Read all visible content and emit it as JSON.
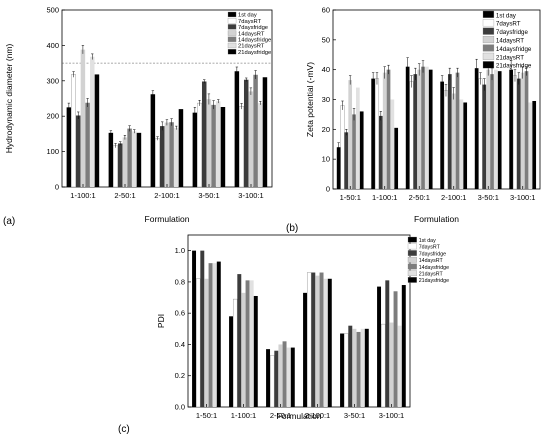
{
  "colors": [
    "#000000",
    "#ebebeb",
    "#3c3c3c",
    "#d2d2d2",
    "#7d7d7d",
    "#e1e1e1"
  ],
  "chart_data": [
    {
      "id": "a",
      "type": "bar",
      "panel_label": "(a)",
      "xlabel": "Formulation",
      "ylabel": "Hydrodynamic diameter (nm)",
      "ylim": [
        0,
        500
      ],
      "yticks": [
        0,
        100,
        200,
        300,
        400,
        500
      ],
      "grid": false,
      "legend_position": "top-right",
      "reference_line_y": 350,
      "categories": [
        "1-100:1",
        "2-50:1",
        "2-100:1",
        "3-50:1",
        "3-100:1"
      ],
      "series": [
        {
          "name": "1st day",
          "values": [
            225,
            153,
            262,
            210,
            327
          ],
          "errors": [
            12,
            6,
            10,
            15,
            12
          ]
        },
        {
          "name": "7daysRT",
          "values": [
            318,
            117,
            137,
            237,
            228
          ],
          "errors": [
            8,
            6,
            5,
            8,
            8
          ]
        },
        {
          "name": "7daysfridge",
          "values": [
            202,
            123,
            172,
            298,
            303
          ],
          "errors": [
            10,
            5,
            12,
            5,
            5
          ]
        },
        {
          "name": "14daysRT",
          "values": [
            388,
            140,
            182,
            248,
            270
          ],
          "errors": [
            12,
            6,
            8,
            15,
            10
          ]
        },
        {
          "name": "14daysfridge",
          "values": [
            238,
            165,
            183,
            232,
            317
          ],
          "errors": [
            12,
            8,
            10,
            12,
            12
          ]
        },
        {
          "name": "21daysRT",
          "values": [
            368,
            157,
            167,
            242,
            237
          ],
          "errors": [
            8,
            5,
            5,
            5,
            5
          ]
        },
        {
          "name": "21daysfridge",
          "values": [
            318,
            153,
            220,
            226,
            310
          ],
          "errors": [
            0,
            0,
            0,
            0,
            0
          ]
        }
      ]
    },
    {
      "id": "b",
      "type": "bar",
      "panel_label": "(b)",
      "xlabel": "Formulation",
      "ylabel": "Zeta potential (-mV)",
      "ylim": [
        0,
        60
      ],
      "yticks": [
        0,
        10,
        20,
        30,
        40,
        50,
        60
      ],
      "grid": false,
      "legend_position": "top-right",
      "categories": [
        "1-50:1",
        "1-100:1",
        "2-50:1",
        "2-100:1",
        "3-50:1",
        "3-100:1"
      ],
      "series": [
        {
          "name": "1st day",
          "values": [
            14,
            37,
            41,
            36,
            40.5,
            40
          ],
          "errors": [
            1.5,
            2,
            3,
            2,
            3,
            3
          ]
        },
        {
          "name": "7daysRT",
          "values": [
            28,
            37,
            36,
            33,
            37,
            38
          ],
          "errors": [
            1.5,
            2,
            2,
            2,
            2,
            2
          ]
        },
        {
          "name": "7daysfridge",
          "values": [
            19,
            24.5,
            38.5,
            38.5,
            35,
            37
          ],
          "errors": [
            1,
            1.5,
            2,
            2,
            2,
            2
          ]
        },
        {
          "name": "14daysRT",
          "values": [
            36.5,
            39,
            40,
            32,
            40,
            39
          ],
          "errors": [
            1.5,
            2,
            2,
            2,
            2,
            2
          ]
        },
        {
          "name": "14daysfridge",
          "values": [
            25,
            40,
            41,
            39,
            38.5,
            39.5
          ],
          "errors": [
            2,
            1.5,
            2,
            1.5,
            2,
            1.5
          ]
        },
        {
          "name": "21daysRT",
          "values": [
            34,
            30,
            41,
            30,
            40,
            29
          ],
          "errors": [
            0,
            0,
            0,
            0,
            0,
            0
          ]
        },
        {
          "name": "21daysfridge",
          "values": [
            26,
            20.5,
            40,
            29,
            39.5,
            29.5
          ],
          "errors": [
            0,
            0,
            0,
            0,
            0,
            0
          ]
        }
      ]
    },
    {
      "id": "c",
      "type": "bar",
      "panel_label": "(c)",
      "xlabel": "Formulation",
      "ylabel": "PDI",
      "ylim": [
        0,
        1.1
      ],
      "yticks": [
        0,
        0.2,
        0.4,
        0.6,
        0.8,
        1.0
      ],
      "ytick_labels": [
        "0.0",
        "0.2",
        "0.4",
        "0.6",
        "0.8",
        "1.0"
      ],
      "grid": false,
      "legend_position": "top-right",
      "categories": [
        "1-50:1",
        "1-100:1",
        "2-50:1",
        "2-100:1",
        "3-50:1",
        "3-100:1"
      ],
      "series": [
        {
          "name": "1st day",
          "values": [
            1.0,
            0.58,
            0.37,
            0.73,
            0.47,
            0.77
          ],
          "errors": [
            0,
            0,
            0,
            0,
            0,
            0
          ]
        },
        {
          "name": "7daysRT",
          "values": [
            0.82,
            0.69,
            0.33,
            0.86,
            0.47,
            0.53
          ],
          "errors": [
            0,
            0,
            0,
            0,
            0,
            0
          ]
        },
        {
          "name": "7daysfridge",
          "values": [
            1.0,
            0.85,
            0.36,
            0.86,
            0.52,
            0.81
          ],
          "errors": [
            0,
            0,
            0,
            0,
            0,
            0
          ]
        },
        {
          "name": "14daysRT",
          "values": [
            0.82,
            0.73,
            0.4,
            0.84,
            0.5,
            0.54
          ],
          "errors": [
            0,
            0,
            0,
            0,
            0,
            0
          ]
        },
        {
          "name": "14daysfridge",
          "values": [
            0.92,
            0.81,
            0.42,
            0.86,
            0.48,
            0.74
          ],
          "errors": [
            0,
            0,
            0,
            0,
            0,
            0
          ]
        },
        {
          "name": "21daysRT",
          "values": [
            0.92,
            0.81,
            0.38,
            0.82,
            0.5,
            0.52
          ],
          "errors": [
            0,
            0,
            0,
            0,
            0,
            0
          ]
        },
        {
          "name": "21daysfridge",
          "values": [
            0.93,
            0.71,
            0.38,
            0.82,
            0.5,
            0.78
          ],
          "errors": [
            0,
            0,
            0,
            0,
            0,
            0
          ]
        }
      ]
    }
  ]
}
